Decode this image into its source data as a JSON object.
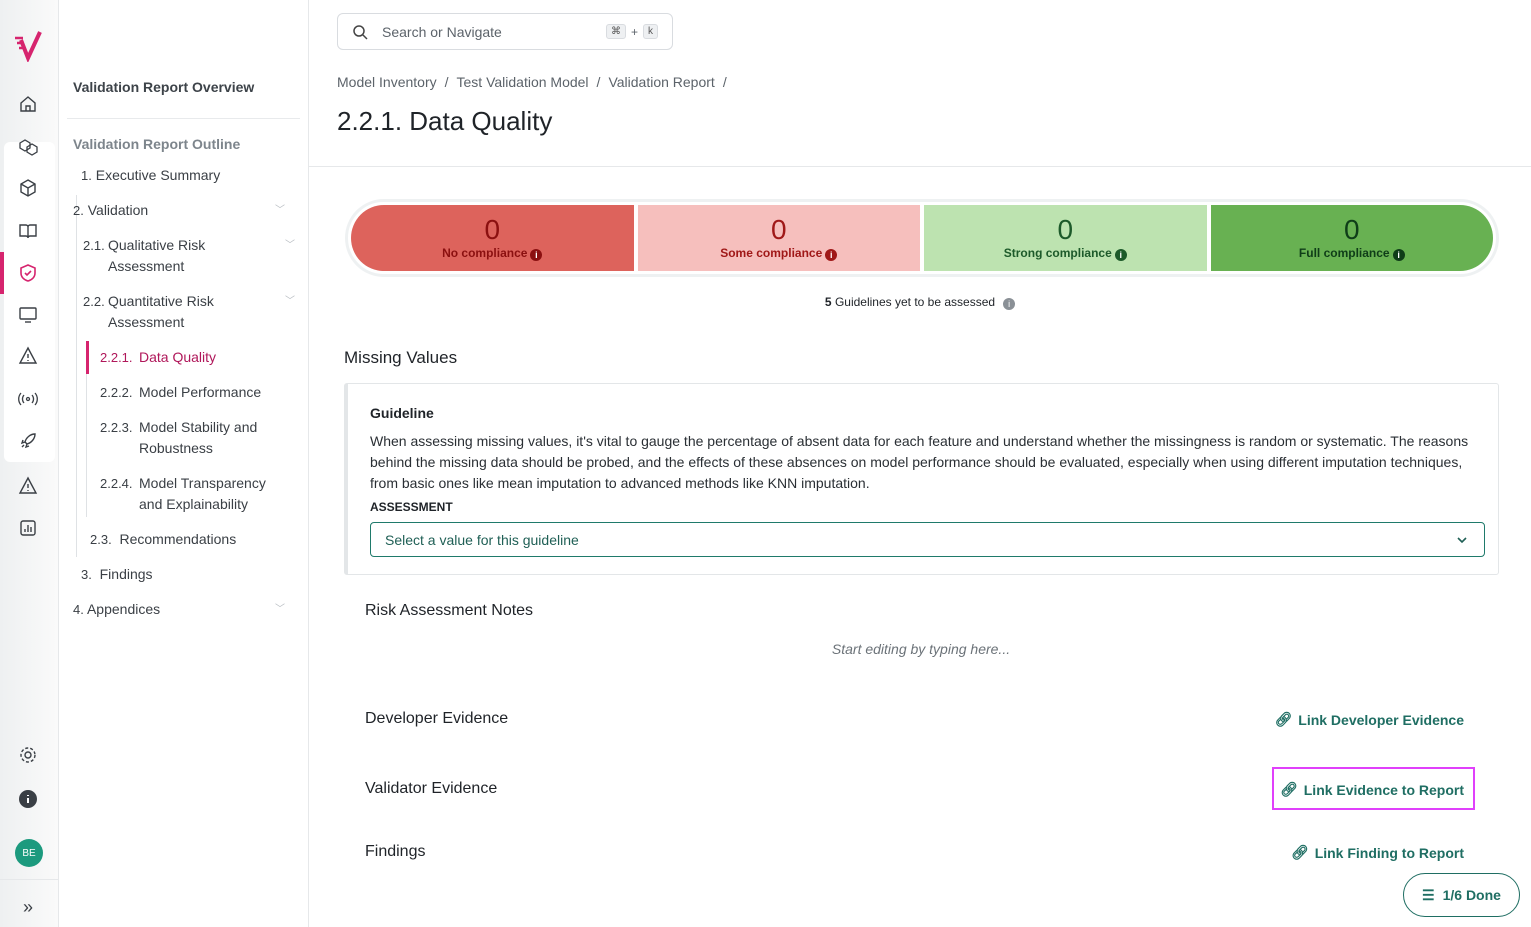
{
  "brand": {
    "accent": "#d6246e",
    "logo": "validmind-check-logo"
  },
  "rail": {
    "icons": [
      "home-icon",
      "models-icon",
      "cube-icon",
      "book-icon",
      "shield-check-icon",
      "monitor-icon",
      "warning-icon",
      "broadcast-icon",
      "rocket-icon",
      "alert-icon",
      "chart-icon",
      "gear-icon",
      "info-icon"
    ],
    "avatar": "BE"
  },
  "outline": {
    "overview": "Validation Report Overview",
    "title": "Validation Report Outline",
    "items": [
      {
        "num": "1.",
        "label": "Executive Summary"
      },
      {
        "num": "2.",
        "label": "Validation"
      },
      {
        "num": "2.1.",
        "label": "Qualitative Risk Assessment"
      },
      {
        "num": "2.2.",
        "label": "Quantitative Risk Assessment"
      },
      {
        "num": "2.2.1.",
        "label": "Data Quality"
      },
      {
        "num": "2.2.2.",
        "label": "Model Performance"
      },
      {
        "num": "2.2.3.",
        "label": "Model Stability and Robustness"
      },
      {
        "num": "2.2.4.",
        "label": "Model Transparency and Explainability"
      },
      {
        "num": "2.3.",
        "label": "Recommendations"
      },
      {
        "num": "3.",
        "label": "Findings"
      },
      {
        "num": "4.",
        "label": "Appendices"
      }
    ]
  },
  "search": {
    "placeholder": "Search or Navigate",
    "k1": "⌘",
    "plus": "+",
    "k2": "k"
  },
  "breadcrumb": [
    "Model Inventory",
    "Test Validation Model",
    "Validation Report"
  ],
  "sep": "/",
  "title": "2.2.1. Data Quality",
  "compliance": [
    {
      "value": "0",
      "label": "No compliance",
      "bg": "#dd635c",
      "fg": "#8b1010"
    },
    {
      "value": "0",
      "label": "Some compliance",
      "bg": "#f6bfbd",
      "fg": "#a01818"
    },
    {
      "value": "0",
      "label": "Strong compliance",
      "bg": "#bde3b0",
      "fg": "#1d5a2a"
    },
    {
      "value": "0",
      "label": "Full compliance",
      "bg": "#68b152",
      "fg": "#0f3d18"
    }
  ],
  "yet": {
    "count": "5",
    "text": "Guidelines yet to be assessed"
  },
  "section": "Missing Values",
  "guideline": {
    "heading": "Guideline",
    "text": "When assessing missing values, it's vital to gauge the percentage of absent data for each feature and understand whether the missingness is random or systematic. The reasons behind the missing data should be probed, and the effects of these absences on model performance should be evaluated, especially when using different imputation techniques, from basic ones like mean imputation to advanced methods like KNN imputation.",
    "assessment_label": "ASSESSMENT",
    "select_placeholder": "Select a value for this guideline"
  },
  "notes": {
    "title": "Risk Assessment Notes",
    "placeholder": "Start editing by typing here..."
  },
  "developer": {
    "title": "Developer Evidence",
    "link": "Link Developer Evidence"
  },
  "validator": {
    "title": "Validator Evidence",
    "link": "Link Evidence to Report"
  },
  "findings": {
    "title": "Findings",
    "link": "Link Finding to Report"
  },
  "progress": {
    "label": "1/6 Done"
  }
}
